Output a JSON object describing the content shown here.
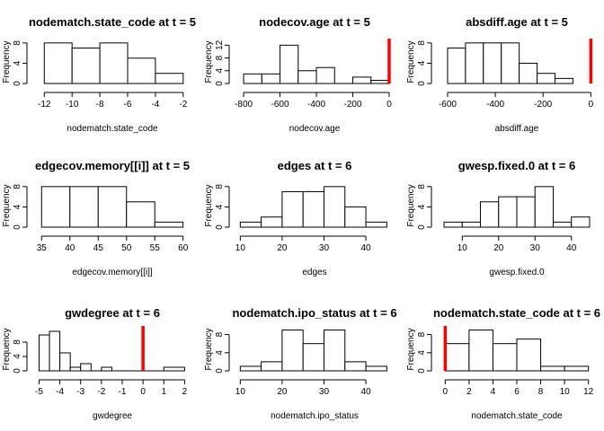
{
  "chart_data": [
    {
      "type": "bar",
      "title": "nodematch.state_code at t = 5",
      "xlabel": "nodematch.state_code",
      "ylabel": "Frequency",
      "xlim": [
        -12.6,
        -1.6
      ],
      "ylim": [
        0,
        8.5
      ],
      "xticks": [
        "-12",
        "-10",
        "-8",
        "-6",
        "-4",
        "-2"
      ],
      "yticks": [
        "0",
        "4",
        "8"
      ],
      "bins": [
        [
          -12,
          -10,
          8
        ],
        [
          -10,
          -8,
          7
        ],
        [
          -8,
          -6,
          8
        ],
        [
          -6,
          -4,
          5
        ],
        [
          -4,
          -2,
          2
        ]
      ],
      "ref_line": null
    },
    {
      "type": "bar",
      "title": "nodecov.age at t = 5",
      "xlabel": "nodecov.age",
      "ylabel": "Frequency",
      "xlim": [
        -830,
        10
      ],
      "ylim": [
        0,
        13.5
      ],
      "xticks": [
        "-800",
        "-600",
        "-400",
        "-200",
        "0"
      ],
      "yticks": [
        "0",
        "4",
        "8",
        "12"
      ],
      "bins": [
        [
          -800,
          -700,
          3
        ],
        [
          -700,
          -600,
          3
        ],
        [
          -600,
          -500,
          12
        ],
        [
          -500,
          -400,
          4
        ],
        [
          -400,
          -300,
          5
        ],
        [
          -300,
          -200,
          0
        ],
        [
          -200,
          -100,
          2
        ],
        [
          -100,
          0,
          1
        ]
      ],
      "ref_line": 0
    },
    {
      "type": "bar",
      "title": "absdiff.age at t = 5",
      "xlabel": "absdiff.age",
      "ylabel": "Frequency",
      "xlim": [
        -630,
        10
      ],
      "ylim": [
        0,
        8.5
      ],
      "xticks": [
        "-600",
        "-400",
        "-200",
        "0"
      ],
      "yticks": [
        "0",
        "4",
        "8"
      ],
      "bins": [
        [
          -600,
          -525,
          7
        ],
        [
          -525,
          -450,
          8
        ],
        [
          -450,
          -375,
          8
        ],
        [
          -375,
          -300,
          8
        ],
        [
          -300,
          -225,
          4
        ],
        [
          -225,
          -150,
          2
        ],
        [
          -150,
          -75,
          1
        ]
      ],
      "ref_line": 0
    },
    {
      "type": "bar",
      "title": "edgecov.memory[[i]] at t = 5",
      "xlabel": "edgecov.memory[[i]]",
      "ylabel": "Frequency",
      "xlim": [
        34,
        61
      ],
      "ylim": [
        0,
        8.5
      ],
      "xticks": [
        "35",
        "40",
        "45",
        "50",
        "55",
        "60"
      ],
      "yticks": [
        "0",
        "4",
        "8"
      ],
      "bins": [
        [
          35,
          40,
          8
        ],
        [
          40,
          45,
          8
        ],
        [
          45,
          50,
          8
        ],
        [
          50,
          55,
          5
        ],
        [
          55,
          60,
          1
        ]
      ],
      "ref_line": null
    },
    {
      "type": "bar",
      "title": "edges at t = 6",
      "xlabel": "edges",
      "ylabel": "Frequency",
      "xlim": [
        9.5,
        46
      ],
      "ylim": [
        0,
        8.5
      ],
      "xticks": [
        "10",
        "20",
        "30",
        "40"
      ],
      "yticks": [
        "0",
        "4",
        "8"
      ],
      "bins": [
        [
          10,
          15,
          1
        ],
        [
          15,
          20,
          2
        ],
        [
          20,
          25,
          7
        ],
        [
          25,
          30,
          7
        ],
        [
          30,
          35,
          8
        ],
        [
          35,
          40,
          4
        ],
        [
          40,
          45,
          1
        ]
      ],
      "ref_line": null
    },
    {
      "type": "bar",
      "title": "gwesp.fixed.0 at t = 6",
      "xlabel": "gwesp.fixed.0",
      "ylabel": "Frequency",
      "xlim": [
        4,
        46
      ],
      "ylim": [
        0,
        8.5
      ],
      "xticks": [
        "10",
        "20",
        "30",
        "40"
      ],
      "yticks": [
        "0",
        "4",
        "8"
      ],
      "bins": [
        [
          5,
          10,
          1
        ],
        [
          10,
          15,
          1
        ],
        [
          15,
          20,
          5
        ],
        [
          20,
          25,
          6
        ],
        [
          25,
          30,
          6
        ],
        [
          30,
          35,
          8
        ],
        [
          35,
          40,
          1
        ],
        [
          40,
          45,
          2
        ]
      ],
      "ref_line": null
    },
    {
      "type": "bar",
      "title": "gwdegree at t = 6",
      "xlabel": "gwdegree",
      "ylabel": "Frequency",
      "xlim": [
        -5.15,
        2.2
      ],
      "ylim": [
        0,
        12
      ],
      "xticks": [
        "-5",
        "-4",
        "-3",
        "-2",
        "-1",
        "0",
        "1",
        "2"
      ],
      "yticks": [
        "0",
        "4",
        "8"
      ],
      "bins": [
        [
          -5,
          -4.5,
          10
        ],
        [
          -4.5,
          -4,
          11
        ],
        [
          -4,
          -3.5,
          5
        ],
        [
          -3.5,
          -3,
          1
        ],
        [
          -3,
          -2.5,
          2
        ],
        [
          -2.5,
          -2,
          0
        ],
        [
          -2,
          -1.5,
          1
        ]
      ],
      "bins_scaled": true,
      "ref_line": 0
    },
    {
      "type": "bar",
      "title": "nodematch.ipo_status at t = 6",
      "xlabel": "nodematch.ipo_status",
      "ylabel": "Frequency",
      "xlim": [
        9.5,
        46
      ],
      "ylim": [
        0,
        9.5
      ],
      "xticks": [
        "10",
        "20",
        "30",
        "40"
      ],
      "yticks": [
        "0",
        "4",
        "8"
      ],
      "bins": [
        [
          10,
          15,
          1
        ],
        [
          15,
          20,
          2
        ],
        [
          20,
          25,
          9
        ],
        [
          25,
          30,
          6
        ],
        [
          30,
          35,
          9
        ],
        [
          35,
          40,
          2
        ],
        [
          40,
          45,
          1
        ]
      ],
      "ref_line": null
    },
    {
      "type": "bar",
      "title": "nodematch.state_code at t = 6",
      "xlabel": "nodematch.state_code",
      "ylabel": "Frequency",
      "xlim": [
        -0.4,
        12.4
      ],
      "ylim": [
        0,
        9.5
      ],
      "xticks": [
        "0",
        "2",
        "4",
        "6",
        "8",
        "10",
        "12"
      ],
      "yticks": [
        "0",
        "4",
        "8"
      ],
      "bins": [
        [
          0,
          2,
          6
        ],
        [
          2,
          4,
          9
        ],
        [
          4,
          6,
          6
        ],
        [
          6,
          8,
          7
        ],
        [
          8,
          10,
          1
        ],
        [
          10,
          12,
          1
        ]
      ],
      "ref_line": 0
    }
  ],
  "colors": {
    "bar_fill": "#ffffff",
    "bar_stroke": "#000000",
    "ref_line": "#ff0000"
  }
}
